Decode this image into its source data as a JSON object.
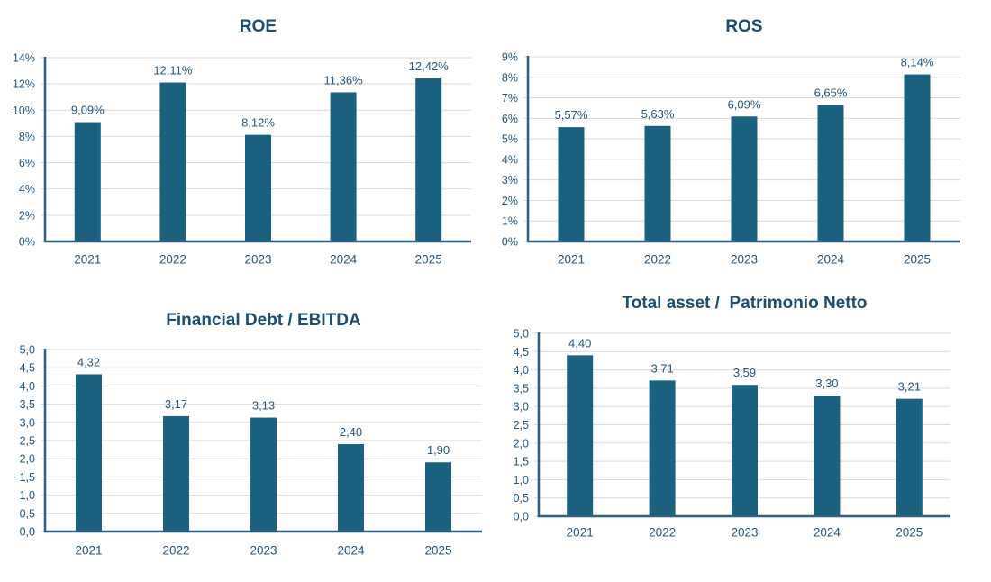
{
  "colors": {
    "bar": "#1b6180",
    "title": "#1b4e72",
    "text": "#24567a",
    "axis": "#2e5f7e",
    "grid": "#d9d9d9",
    "background": "#ffffff"
  },
  "chart_data": [
    {
      "id": "roe",
      "type": "bar",
      "title": "ROE",
      "categories": [
        "2021",
        "2022",
        "2023",
        "2024",
        "2025"
      ],
      "values": [
        9.09,
        12.11,
        8.12,
        11.36,
        12.42
      ],
      "value_labels": [
        "9,09%",
        "12,11%",
        "8,12%",
        "11,36%",
        "12,42%"
      ],
      "ylim": [
        0,
        14
      ],
      "ytick_step": 2,
      "ytick_labels": [
        "0%",
        "2%",
        "4%",
        "6%",
        "8%",
        "10%",
        "12%",
        "14%"
      ],
      "xlabel": "",
      "ylabel": "",
      "grid": true,
      "legend": "none"
    },
    {
      "id": "ros",
      "type": "bar",
      "title": "ROS",
      "categories": [
        "2021",
        "2022",
        "2023",
        "2024",
        "2025"
      ],
      "values": [
        5.57,
        5.63,
        6.09,
        6.65,
        8.14
      ],
      "value_labels": [
        "5,57%",
        "5,63%",
        "6,09%",
        "6,65%",
        "8,14%"
      ],
      "ylim": [
        0,
        9
      ],
      "ytick_step": 1,
      "ytick_labels": [
        "0%",
        "1%",
        "2%",
        "3%",
        "4%",
        "5%",
        "6%",
        "7%",
        "8%",
        "9%"
      ],
      "xlabel": "",
      "ylabel": "",
      "grid": true,
      "legend": "none"
    },
    {
      "id": "financial-debt-ebitda",
      "type": "bar",
      "title": "Financial Debt / EBITDA",
      "categories": [
        "2021",
        "2022",
        "2023",
        "2024",
        "2025"
      ],
      "values": [
        4.32,
        3.17,
        3.13,
        2.4,
        1.9
      ],
      "value_labels": [
        "4,32",
        "3,17",
        "3,13",
        "2,40",
        "1,90"
      ],
      "ylim": [
        0,
        5
      ],
      "ytick_step": 0.5,
      "ytick_labels": [
        "0,0",
        "0,5",
        "1,0",
        "1,5",
        "2,0",
        "2,5",
        "3,0",
        "3,5",
        "4,0",
        "4,5",
        "5,0"
      ],
      "xlabel": "",
      "ylabel": "",
      "grid": true,
      "legend": "none"
    },
    {
      "id": "total-asset-patrimonio-netto",
      "type": "bar",
      "title": "Total asset /  Patrimonio Netto",
      "categories": [
        "2021",
        "2022",
        "2023",
        "2024",
        "2025"
      ],
      "values": [
        4.4,
        3.71,
        3.59,
        3.3,
        3.21
      ],
      "value_labels": [
        "4,40",
        "3,71",
        "3,59",
        "3,30",
        "3,21"
      ],
      "ylim": [
        0,
        5
      ],
      "ytick_step": 0.5,
      "ytick_labels": [
        "0,0",
        "0,5",
        "1,0",
        "1,5",
        "2,0",
        "2,5",
        "3,0",
        "3,5",
        "4,0",
        "4,5",
        "5,0"
      ],
      "xlabel": "",
      "ylabel": "",
      "grid": true,
      "legend": "none"
    }
  ]
}
